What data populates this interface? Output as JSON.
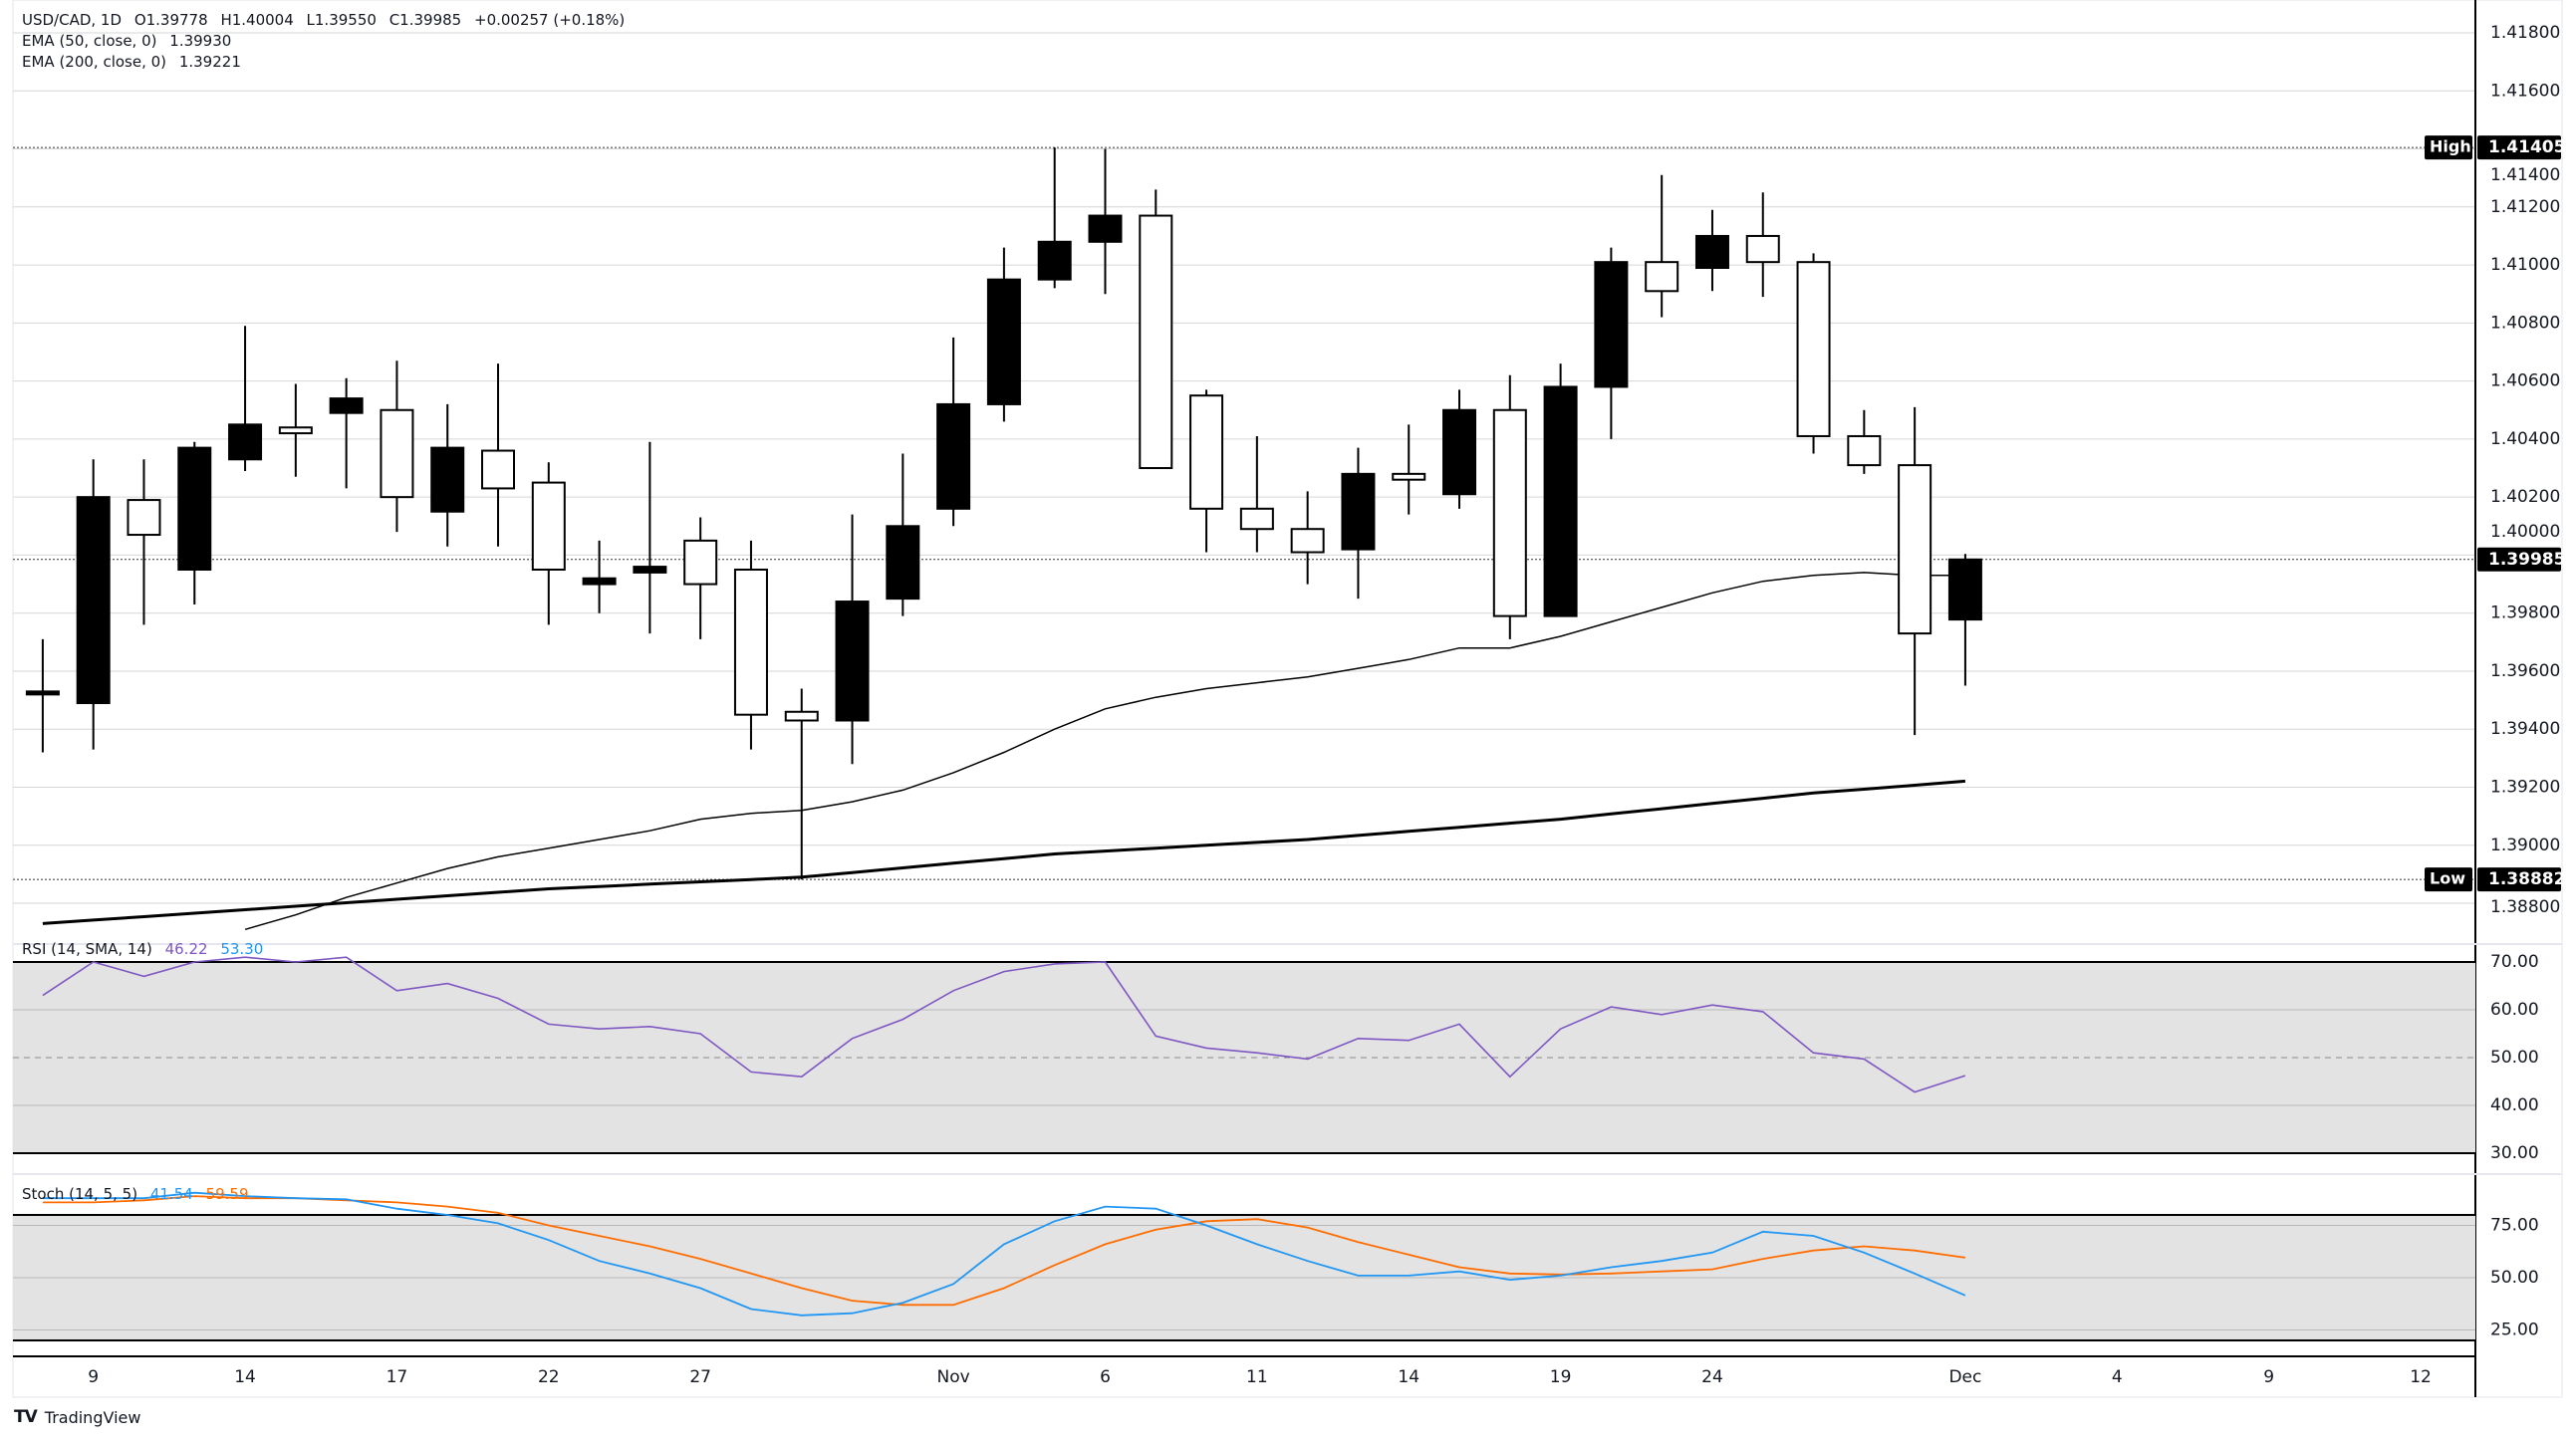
{
  "header": {
    "symbol": "USD/CAD, 1D",
    "open": "O1.39778",
    "high": "H1.40004",
    "low": "L1.39550",
    "close": "C1.39985",
    "change": "+0.00257 (+0.18%)",
    "ema50_label": "EMA (50, close, 0)",
    "ema50_value": "1.39930",
    "ema200_label": "EMA (200, close, 0)",
    "ema200_value": "1.39221"
  },
  "price_scale": {
    "ticks": [
      "1.41800",
      "1.41600",
      "1.41400",
      "1.41200",
      "1.41000",
      "1.40800",
      "1.40600",
      "1.40400",
      "1.40200",
      "1.40000",
      "1.39800",
      "1.39600",
      "1.39400",
      "1.39200",
      "1.39000",
      "1.38800"
    ],
    "high_label": "High",
    "high_value": "1.41405",
    "low_label": "Low",
    "low_value": "1.38882",
    "last_value": "1.39985"
  },
  "rsi": {
    "label": "RSI (14, SMA, 14)",
    "value": "46.22",
    "sma_value": "53.30",
    "ticks": [
      "70.00",
      "60.00",
      "50.00",
      "40.00",
      "30.00"
    ]
  },
  "stoch": {
    "label": "Stoch (14, 5, 5)",
    "k_value": "41.54",
    "d_value": "59.59",
    "ticks": [
      "75.00",
      "50.00",
      "25.00"
    ]
  },
  "time_axis": [
    {
      "label": "9",
      "bar": 1
    },
    {
      "label": "14",
      "bar": 4
    },
    {
      "label": "17",
      "bar": 7
    },
    {
      "label": "22",
      "bar": 10
    },
    {
      "label": "27",
      "bar": 13
    },
    {
      "label": "Nov",
      "bar": 18
    },
    {
      "label": "6",
      "bar": 21
    },
    {
      "label": "11",
      "bar": 24
    },
    {
      "label": "14",
      "bar": 27
    },
    {
      "label": "19",
      "bar": 30
    },
    {
      "label": "24",
      "bar": 33
    },
    {
      "label": "Dec",
      "bar": 38
    },
    {
      "label": "4",
      "bar": 41
    },
    {
      "label": "9",
      "bar": 44
    },
    {
      "label": "12",
      "bar": 47
    }
  ],
  "brand": "TradingView",
  "colors": {
    "up_body": "#000000",
    "down_body": "#ffffff",
    "rsi_line": "#7E57C2",
    "rsi_sma": "#2196F3",
    "stoch_k": "#2196F3",
    "stoch_d": "#FF6D00",
    "band_fill": "#e3e3e3",
    "grid": "#d6d6d6"
  },
  "chart_data": {
    "type": "candlestick",
    "title": "USD/CAD, 1D",
    "ylim": [
      1.388,
      1.418
    ],
    "candles_ohlc": [
      [
        1.3952,
        1.3971,
        1.3932,
        1.3953
      ],
      [
        1.3949,
        1.4033,
        1.3933,
        1.402
      ],
      [
        1.4019,
        1.4033,
        1.3976,
        1.4007
      ],
      [
        1.3995,
        1.4039,
        1.3983,
        1.4037
      ],
      [
        1.4033,
        1.4079,
        1.4029,
        1.4045
      ],
      [
        1.4044,
        1.4059,
        1.4027,
        1.4042
      ],
      [
        1.4049,
        1.4061,
        1.4023,
        1.4054
      ],
      [
        1.405,
        1.4067,
        1.4008,
        1.402
      ],
      [
        1.4015,
        1.4052,
        1.4003,
        1.4037
      ],
      [
        1.4036,
        1.4066,
        1.4003,
        1.4023
      ],
      [
        1.4025,
        1.4032,
        1.3976,
        1.3995
      ],
      [
        1.399,
        1.4005,
        1.398,
        1.3992
      ],
      [
        1.3994,
        1.4039,
        1.3973,
        1.3996
      ],
      [
        1.4005,
        1.4013,
        1.3971,
        1.399
      ],
      [
        1.3995,
        1.4005,
        1.3933,
        1.3945
      ],
      [
        1.3946,
        1.3954,
        1.38882,
        1.3943
      ],
      [
        1.3943,
        1.4014,
        1.3928,
        1.3984
      ],
      [
        1.3985,
        1.4035,
        1.3979,
        1.401
      ],
      [
        1.4016,
        1.4075,
        1.401,
        1.4052
      ],
      [
        1.4052,
        1.4106,
        1.4046,
        1.4095
      ],
      [
        1.4095,
        1.41405,
        1.4092,
        1.4108
      ],
      [
        1.4108,
        1.414,
        1.409,
        1.4117
      ],
      [
        1.4117,
        1.4126,
        1.403,
        1.403
      ],
      [
        1.4055,
        1.4057,
        1.4001,
        1.4016
      ],
      [
        1.4016,
        1.4041,
        1.4001,
        1.4009
      ],
      [
        1.4009,
        1.4022,
        1.399,
        1.4001
      ],
      [
        1.4002,
        1.4037,
        1.3985,
        1.4028
      ],
      [
        1.4028,
        1.4045,
        1.4014,
        1.4026
      ],
      [
        1.4021,
        1.4057,
        1.4016,
        1.405
      ],
      [
        1.405,
        1.4062,
        1.3971,
        1.3979
      ],
      [
        1.3979,
        1.4066,
        1.3979,
        1.4058
      ],
      [
        1.4058,
        1.4106,
        1.404,
        1.4101
      ],
      [
        1.4101,
        1.4131,
        1.4082,
        1.4091
      ],
      [
        1.4099,
        1.4119,
        1.4091,
        1.411
      ],
      [
        1.411,
        1.4125,
        1.4089,
        1.4101
      ],
      [
        1.4101,
        1.4104,
        1.4035,
        1.4041
      ],
      [
        1.4041,
        1.405,
        1.4028,
        1.4031
      ],
      [
        1.4031,
        1.4051,
        1.3938,
        1.3973
      ],
      [
        1.39778,
        1.40004,
        1.3955,
        1.39985
      ]
    ],
    "ema50": [
      null,
      null,
      null,
      null,
      1.3871,
      1.3876,
      1.3882,
      1.3887,
      1.3892,
      1.3896,
      1.3899,
      1.3902,
      1.3905,
      1.3909,
      1.3911,
      1.3912,
      1.3915,
      1.3919,
      1.3925,
      1.3932,
      1.394,
      1.3947,
      1.3951,
      1.3954,
      1.3956,
      1.3958,
      1.3961,
      1.3964,
      1.3968,
      1.3968,
      1.3972,
      1.3977,
      1.3982,
      1.3987,
      1.3991,
      1.3993,
      1.3994,
      1.3993,
      1.3993
    ],
    "ema200": [
      1.3873,
      1.38742,
      1.38754,
      1.38766,
      1.38778,
      1.3879,
      1.38802,
      1.38814,
      1.38826,
      1.38838,
      1.3885,
      1.38858,
      1.38866,
      1.38874,
      1.38882,
      1.3889,
      1.38906,
      1.38922,
      1.38938,
      1.38954,
      1.3897,
      1.3898,
      1.3899,
      1.39,
      1.3901,
      1.3902,
      1.39034,
      1.39048,
      1.39062,
      1.39076,
      1.3909,
      1.39108,
      1.39126,
      1.39144,
      1.39162,
      1.3918,
      1.39193,
      1.39207,
      1.39221
    ],
    "rsi": [
      63,
      70,
      67,
      70,
      71,
      70,
      71,
      64,
      65.5,
      62.4,
      57,
      56,
      56.5,
      55,
      47,
      46,
      54,
      58,
      64,
      68,
      69.6,
      70,
      54.5,
      52,
      51,
      49.7,
      54,
      53.6,
      57,
      46,
      56,
      60.6,
      59,
      61,
      59.6,
      51,
      49.7,
      42.8,
      46.22
    ],
    "rsi_range": [
      30,
      70
    ],
    "stoch_k": [
      88,
      88,
      88,
      90.6,
      89,
      88,
      87.5,
      83,
      80,
      76,
      68,
      58,
      52,
      45,
      35,
      32,
      33,
      38,
      47,
      66,
      77,
      84,
      83,
      75,
      66,
      58,
      51,
      51,
      53,
      49,
      51,
      55,
      58,
      62,
      72,
      70,
      62,
      52,
      41.54
    ],
    "stoch_d": [
      86,
      86,
      87,
      89,
      88,
      88,
      87,
      86,
      84,
      81,
      75,
      70,
      65,
      59,
      52,
      45,
      39,
      37,
      37,
      45,
      56,
      66,
      73,
      77,
      78,
      74,
      67,
      61,
      55,
      52,
      51.5,
      52,
      53,
      54,
      59,
      63,
      65,
      63,
      59.59
    ],
    "stoch_bands": [
      20,
      80
    ]
  }
}
